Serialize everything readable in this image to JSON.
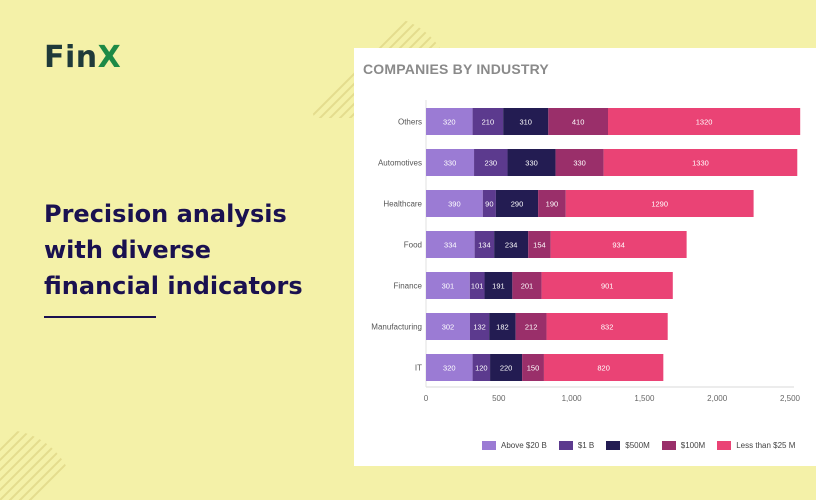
{
  "brand": {
    "name_part1": "Fin",
    "name_part2": "X"
  },
  "headline": {
    "line1": "Precision analysis",
    "line2": "with diverse",
    "line3": "financial indicators"
  },
  "colors": {
    "background": "#f4f1a8",
    "headline": "#1a1150",
    "brand_dark": "#1f3a3a",
    "brand_green": "#1d8a46",
    "series": [
      "#9b7bd4",
      "#5c3a8e",
      "#231c52",
      "#9a2f6a",
      "#ea4375"
    ]
  },
  "chart_data": {
    "type": "bar",
    "orientation": "horizontal",
    "stacked": true,
    "title": "COMPANIES BY INDUSTRY",
    "categories": [
      "Others",
      "Automotives",
      "Healthcare",
      "Food",
      "Finance",
      "Manufacturing",
      "IT"
    ],
    "series": [
      {
        "name": "Above $20 B",
        "values": [
          320,
          330,
          390,
          334,
          301,
          302,
          320
        ]
      },
      {
        "name": "$1 B",
        "values": [
          210,
          230,
          90,
          134,
          101,
          132,
          120
        ]
      },
      {
        "name": "$500M",
        "values": [
          310,
          330,
          290,
          234,
          191,
          182,
          220
        ]
      },
      {
        "name": "$100M",
        "values": [
          410,
          330,
          190,
          154,
          201,
          212,
          150
        ]
      },
      {
        "name": "Less than $25 M",
        "values": [
          1320,
          1330,
          1290,
          934,
          901,
          832,
          820
        ]
      }
    ],
    "xlim": [
      0,
      2500
    ],
    "xticks": [
      "0",
      "500",
      "1,000",
      "1,500",
      "2,000",
      "2,500"
    ],
    "xtick_values": [
      0,
      500,
      1000,
      1500,
      2000,
      2500
    ],
    "legend_position": "bottom",
    "grid": false
  }
}
